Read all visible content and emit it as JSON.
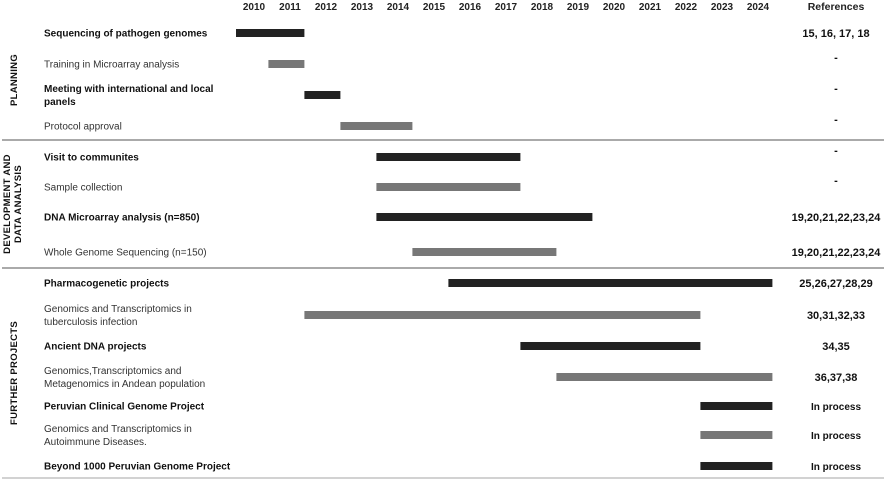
{
  "chart_data": {
    "type": "gantt",
    "years": [
      "2010",
      "2011",
      "2012",
      "2013",
      "2014",
      "2015",
      "2016",
      "2017",
      "2018",
      "2019",
      "2020",
      "2021",
      "2022",
      "2023",
      "2024"
    ],
    "references_header": "References",
    "sections": [
      {
        "title": [
          "PLANNING"
        ],
        "tasks": [
          {
            "label": [
              "Sequencing of pathogen genomes"
            ],
            "bold": true,
            "start": 2010.0,
            "end": 2011.9,
            "color": "#222222",
            "ref": "15, 16, 17, 18"
          },
          {
            "label": [
              "Training in Microarray analysis"
            ],
            "bold": false,
            "start": 2010.9,
            "end": 2011.9,
            "color": "#777777",
            "ref": "-"
          },
          {
            "label": [
              "Meeting with international and local",
              "panels"
            ],
            "bold": true,
            "start": 2011.9,
            "end": 2012.9,
            "color": "#222222",
            "ref": "-"
          },
          {
            "label": [
              "Protocol approval"
            ],
            "bold": false,
            "start": 2012.9,
            "end": 2014.9,
            "color": "#777777",
            "ref": "-"
          }
        ]
      },
      {
        "title": [
          "DEVELOPMENT AND",
          "DATA ANALYSIS"
        ],
        "tasks": [
          {
            "label": [
              "Visit to communites"
            ],
            "bold": true,
            "start": 2013.9,
            "end": 2017.9,
            "color": "#222222",
            "ref": "-"
          },
          {
            "label": [
              "Sample collection"
            ],
            "bold": false,
            "start": 2013.9,
            "end": 2017.9,
            "color": "#777777",
            "ref": "-"
          },
          {
            "label": [
              "DNA Microarray analysis (n=850)"
            ],
            "bold": true,
            "start": 2013.9,
            "end": 2019.9,
            "color": "#222222",
            "ref": "19,20,21,22,23,24"
          },
          {
            "label": [
              "Whole Genome Sequencing (n=150)"
            ],
            "bold": false,
            "start": 2014.9,
            "end": 2018.9,
            "color": "#777777",
            "ref": "19,20,21,22,23,24"
          }
        ]
      },
      {
        "title": [
          "FURTHER PROJECTS"
        ],
        "tasks": [
          {
            "label": [
              "Pharmacogenetic projects"
            ],
            "bold": true,
            "start": 2015.9,
            "end": 2024.9,
            "color": "#222222",
            "ref": "25,26,27,28,29"
          },
          {
            "label": [
              "Genomics and Transcriptomics in",
              "tuberculosis infection"
            ],
            "bold": false,
            "start": 2011.9,
            "end": 2022.9,
            "color": "#777777",
            "ref": "30,31,32,33"
          },
          {
            "label": [
              "Ancient DNA projects"
            ],
            "bold": true,
            "start": 2017.9,
            "end": 2022.9,
            "color": "#222222",
            "ref": "34,35"
          },
          {
            "label": [
              "Genomics,Transcriptomics and",
              "Metagenomics in Andean population"
            ],
            "bold": false,
            "start": 2018.9,
            "end": 2024.9,
            "color": "#777777",
            "ref": "36,37,38"
          },
          {
            "label": [
              "Peruvian Clinical Genome Project"
            ],
            "bold": true,
            "start": 2022.9,
            "end": 2024.9,
            "color": "#222222",
            "ref": "In process"
          },
          {
            "label": [
              "Genomics and Transcriptomics in",
              "Autoimmune Diseases."
            ],
            "bold": false,
            "start": 2022.9,
            "end": 2024.9,
            "color": "#777777",
            "ref": "In process"
          },
          {
            "label": [
              "Beyond 1000 Peruvian Genome Project"
            ],
            "bold": true,
            "start": 2022.9,
            "end": 2024.9,
            "color": "#222222",
            "ref": "In process"
          }
        ]
      }
    ]
  }
}
